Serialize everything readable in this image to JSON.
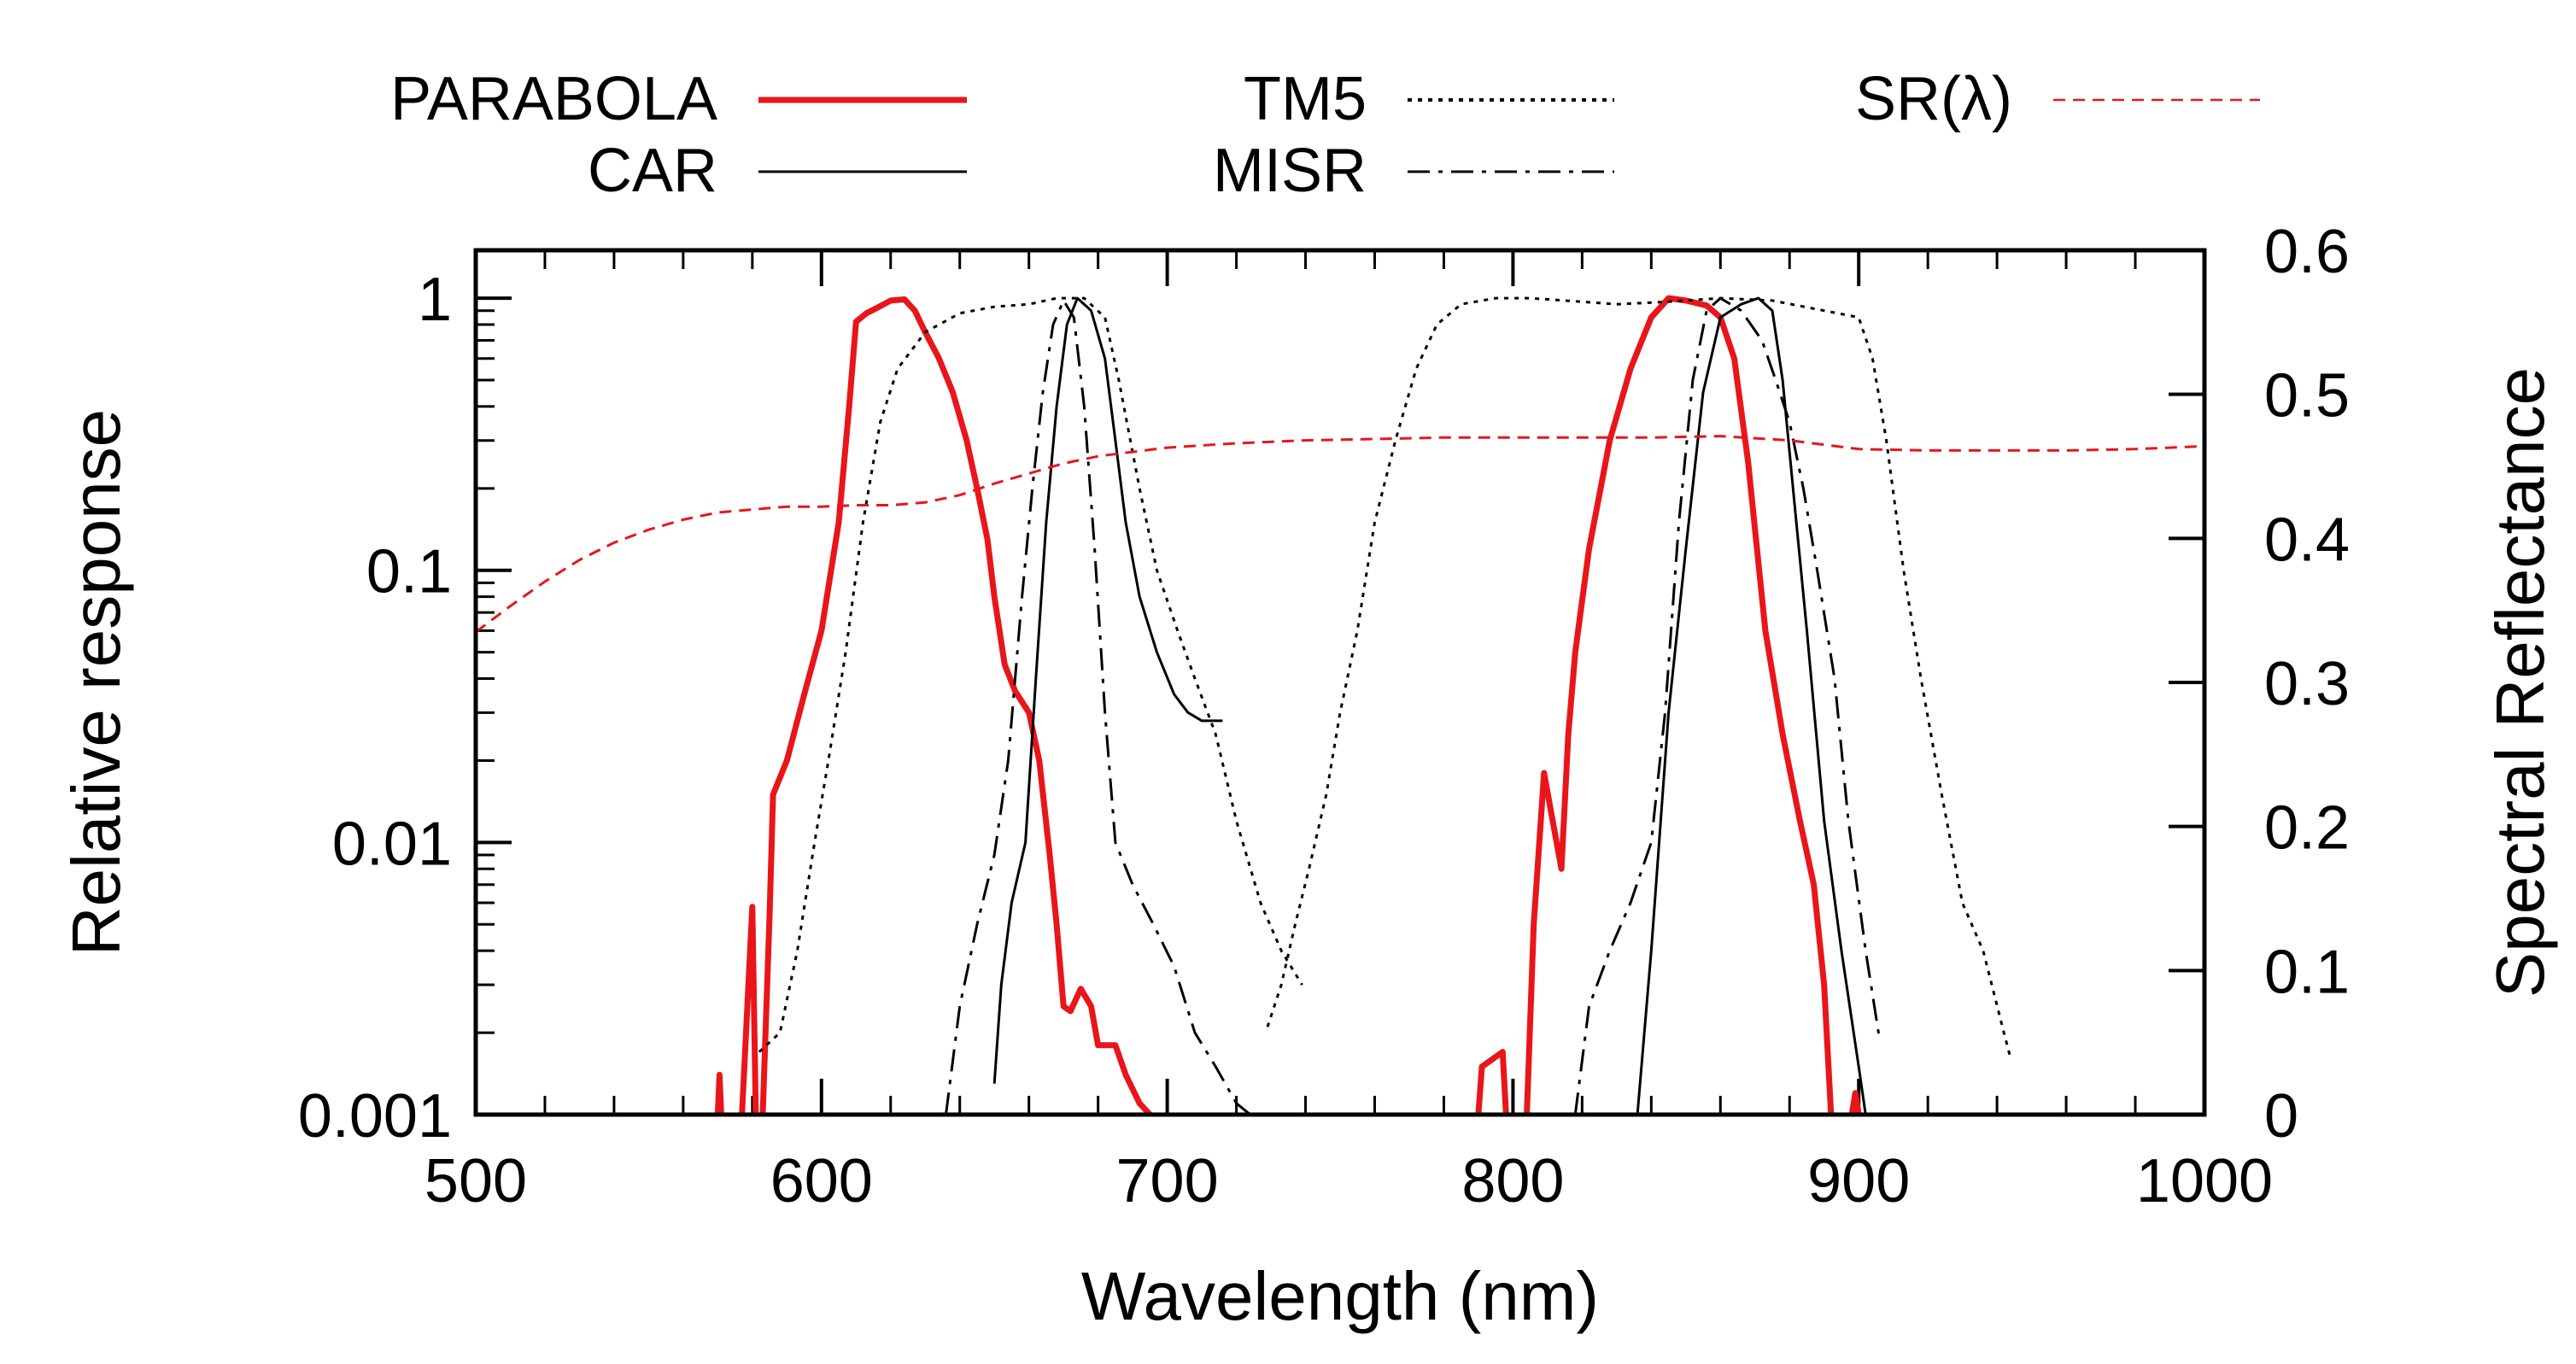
{
  "chart_data": {
    "type": "line",
    "xlabel": "Wavelength (nm)",
    "ylabel": "Relative response",
    "y2label": "Spectral Reflectance",
    "xlim": [
      500,
      1000
    ],
    "ylim": [
      0.001,
      1.5
    ],
    "yscale": "log",
    "y2lim": [
      0,
      0.6
    ],
    "legend_position": "top",
    "x_ticks": [
      500,
      600,
      700,
      800,
      900,
      1000
    ],
    "x_tick_labels": [
      "500",
      "600",
      "700",
      "800",
      "900",
      "1000"
    ],
    "y_ticks": [
      0.001,
      0.01,
      0.1,
      1
    ],
    "y_tick_labels": [
      "0.001",
      "0.01",
      "0.1",
      "1"
    ],
    "y2_ticks": [
      0,
      0.1,
      0.2,
      0.3,
      0.4,
      0.5,
      0.6
    ],
    "y2_tick_labels": [
      "0",
      "0.1",
      "0.2",
      "0.3",
      "0.4",
      "0.5",
      "0.6"
    ],
    "series": [
      {
        "name": "PARABOLA",
        "color": "#e8161b",
        "axis": "left",
        "dash": "solid",
        "width": "thick",
        "segments": [
          [
            [
              570,
              0.001
            ],
            [
              570.5,
              0.0014
            ],
            [
              571,
              0.001
            ]
          ],
          [
            [
              577,
              0.001
            ],
            [
              580,
              0.0058
            ],
            [
              581,
              0.001
            ]
          ],
          [
            [
              583,
              0.001
            ],
            [
              585,
              0.0055
            ],
            [
              586,
              0.015
            ],
            [
              590,
              0.02
            ],
            [
              595,
              0.035
            ],
            [
              600,
              0.06
            ],
            [
              605,
              0.15
            ],
            [
              608,
              0.4
            ],
            [
              610,
              0.82
            ],
            [
              613,
              0.88
            ],
            [
              616,
              0.92
            ],
            [
              620,
              0.98
            ],
            [
              624,
              0.99
            ],
            [
              627,
              0.9
            ],
            [
              630,
              0.75
            ],
            [
              634,
              0.6
            ],
            [
              638,
              0.45
            ],
            [
              642,
              0.3
            ],
            [
              645,
              0.2
            ],
            [
              648,
              0.13
            ],
            [
              650,
              0.08
            ],
            [
              653,
              0.045
            ],
            [
              656,
              0.036
            ],
            [
              660,
              0.03
            ],
            [
              663,
              0.02
            ],
            [
              666,
              0.009
            ],
            [
              668,
              0.005
            ],
            [
              670,
              0.0025
            ],
            [
              672,
              0.0024
            ],
            [
              675,
              0.0029
            ],
            [
              678,
              0.0025
            ],
            [
              680,
              0.0018
            ],
            [
              685,
              0.0018
            ],
            [
              688,
              0.0014
            ],
            [
              692,
              0.0011
            ],
            [
              695,
              0.001
            ]
          ],
          [
            [
              790,
              0.001
            ],
            [
              791,
              0.0015
            ],
            [
              797,
              0.0017
            ],
            [
              798,
              0.001
            ]
          ],
          [
            [
              804,
              0.001
            ],
            [
              806,
              0.005
            ],
            [
              809,
              0.018
            ],
            [
              811,
              0.013
            ],
            [
              814,
              0.008
            ],
            [
              816,
              0.025
            ],
            [
              818,
              0.05
            ],
            [
              822,
              0.12
            ],
            [
              828,
              0.3
            ],
            [
              834,
              0.55
            ],
            [
              840,
              0.85
            ],
            [
              845,
              1.0
            ],
            [
              850,
              0.98
            ],
            [
              856,
              0.94
            ],
            [
              860,
              0.85
            ],
            [
              864,
              0.6
            ],
            [
              868,
              0.25
            ],
            [
              873,
              0.06
            ],
            [
              878,
              0.025
            ],
            [
              883,
              0.012
            ],
            [
              887,
              0.007
            ],
            [
              890,
              0.003
            ],
            [
              892,
              0.001
            ]
          ],
          [
            [
              898,
              0.001
            ],
            [
              899,
              0.0012
            ],
            [
              900,
              0.001
            ]
          ]
        ]
      },
      {
        "name": "CAR",
        "color": "#000000",
        "axis": "left",
        "dash": "solid",
        "width": "thin",
        "segments": [
          [
            [
              650,
              0.0013
            ],
            [
              652,
              0.003
            ],
            [
              655,
              0.006
            ],
            [
              659,
              0.01
            ],
            [
              662,
              0.04
            ],
            [
              665,
              0.15
            ],
            [
              668,
              0.4
            ],
            [
              671,
              0.8
            ],
            [
              674,
              1.0
            ],
            [
              678,
              0.9
            ],
            [
              682,
              0.6
            ],
            [
              685,
              0.3
            ],
            [
              688,
              0.15
            ],
            [
              692,
              0.08
            ],
            [
              697,
              0.05
            ],
            [
              702,
              0.035
            ],
            [
              706,
              0.03
            ],
            [
              710,
              0.028
            ],
            [
              716,
              0.028
            ]
          ],
          [
            [
              836,
              0.001
            ],
            [
              840,
              0.004
            ],
            [
              845,
              0.03
            ],
            [
              850,
              0.12
            ],
            [
              855,
              0.45
            ],
            [
              860,
              0.85
            ],
            [
              866,
              0.95
            ],
            [
              871,
              1.0
            ],
            [
              875,
              0.9
            ],
            [
              878,
              0.5
            ],
            [
              881,
              0.2
            ],
            [
              885,
              0.06
            ],
            [
              890,
              0.012
            ],
            [
              895,
              0.004
            ],
            [
              900,
              0.0015
            ],
            [
              902,
              0.001
            ]
          ]
        ]
      },
      {
        "name": "TM5",
        "color": "#000000",
        "axis": "left",
        "dash": "dotted",
        "width": "thin",
        "segments": [
          [
            [
              582,
              0.0017
            ],
            [
              588,
              0.002
            ],
            [
              593,
              0.004
            ],
            [
              598,
              0.01
            ],
            [
              602,
              0.02
            ],
            [
              607,
              0.05
            ],
            [
              612,
              0.15
            ],
            [
              617,
              0.35
            ],
            [
              622,
              0.55
            ],
            [
              630,
              0.75
            ],
            [
              640,
              0.88
            ],
            [
              650,
              0.93
            ],
            [
              660,
              0.95
            ],
            [
              668,
              1.0
            ],
            [
              676,
              1.0
            ],
            [
              682,
              0.85
            ],
            [
              686,
              0.5
            ],
            [
              692,
              0.2
            ],
            [
              697,
              0.1
            ],
            [
              703,
              0.06
            ],
            [
              708,
              0.04
            ],
            [
              714,
              0.025
            ],
            [
              720,
              0.012
            ],
            [
              727,
              0.006
            ],
            [
              733,
              0.004
            ],
            [
              739,
              0.003
            ]
          ],
          [
            [
              729,
              0.0021
            ],
            [
              733,
              0.003
            ],
            [
              737,
              0.005
            ],
            [
              741,
              0.008
            ],
            [
              746,
              0.015
            ],
            [
              750,
              0.03
            ],
            [
              755,
              0.06
            ],
            [
              760,
              0.15
            ],
            [
              766,
              0.3
            ],
            [
              772,
              0.55
            ],
            [
              778,
              0.8
            ],
            [
              785,
              0.95
            ],
            [
              795,
              1.0
            ],
            [
              805,
              1.0
            ],
            [
              815,
              0.98
            ],
            [
              830,
              0.95
            ],
            [
              845,
              0.97
            ],
            [
              860,
              1.0
            ],
            [
              875,
              0.98
            ],
            [
              890,
              0.9
            ],
            [
              900,
              0.85
            ],
            [
              904,
              0.6
            ],
            [
              908,
              0.3
            ],
            [
              913,
              0.1
            ],
            [
              918,
              0.04
            ],
            [
              924,
              0.015
            ],
            [
              930,
              0.006
            ],
            [
              936,
              0.004
            ],
            [
              942,
              0.002
            ],
            [
              944,
              0.0016
            ]
          ]
        ]
      },
      {
        "name": "MISR",
        "color": "#000000",
        "axis": "left",
        "dash": "dashdot",
        "width": "thin",
        "segments": [
          [
            [
              636,
              0.001
            ],
            [
              640,
              0.0025
            ],
            [
              645,
              0.005
            ],
            [
              650,
              0.009
            ],
            [
              654,
              0.02
            ],
            [
              658,
              0.08
            ],
            [
              661,
              0.2
            ],
            [
              664,
              0.45
            ],
            [
              667,
              0.8
            ],
            [
              670,
              0.98
            ],
            [
              673,
              0.85
            ],
            [
              676,
              0.4
            ],
            [
              679,
              0.12
            ],
            [
              682,
              0.03
            ],
            [
              685,
              0.01
            ],
            [
              690,
              0.007
            ],
            [
              696,
              0.005
            ],
            [
              702,
              0.0035
            ],
            [
              708,
              0.002
            ],
            [
              714,
              0.0015
            ],
            [
              720,
              0.0011
            ],
            [
              724,
              0.001
            ]
          ],
          [
            [
              818,
              0.001
            ],
            [
              822,
              0.0025
            ],
            [
              828,
              0.004
            ],
            [
              834,
              0.006
            ],
            [
              840,
              0.01
            ],
            [
              844,
              0.03
            ],
            [
              848,
              0.15
            ],
            [
              852,
              0.5
            ],
            [
              856,
              0.9
            ],
            [
              860,
              1.0
            ],
            [
              866,
              0.9
            ],
            [
              872,
              0.7
            ],
            [
              876,
              0.5
            ],
            [
              880,
              0.35
            ],
            [
              884,
              0.2
            ],
            [
              888,
              0.1
            ],
            [
              893,
              0.04
            ],
            [
              897,
              0.012
            ],
            [
              902,
              0.004
            ],
            [
              906,
              0.0019
            ]
          ]
        ]
      },
      {
        "name": "SR(λ)",
        "color": "#e8161b",
        "axis": "right",
        "dash": "dashed",
        "width": "thin",
        "segments": [
          [
            [
              500,
              0.335
            ],
            [
              510,
              0.353
            ],
            [
              520,
              0.37
            ],
            [
              530,
              0.385
            ],
            [
              540,
              0.397
            ],
            [
              550,
              0.406
            ],
            [
              560,
              0.413
            ],
            [
              570,
              0.418
            ],
            [
              580,
              0.42
            ],
            [
              590,
              0.422
            ],
            [
              600,
              0.422
            ],
            [
              610,
              0.423
            ],
            [
              620,
              0.423
            ],
            [
              630,
              0.425
            ],
            [
              640,
              0.43
            ],
            [
              650,
              0.438
            ],
            [
              660,
              0.445
            ],
            [
              670,
              0.452
            ],
            [
              680,
              0.457
            ],
            [
              690,
              0.46
            ],
            [
              700,
              0.463
            ],
            [
              720,
              0.466
            ],
            [
              740,
              0.468
            ],
            [
              760,
              0.469
            ],
            [
              780,
              0.47
            ],
            [
              800,
              0.47
            ],
            [
              820,
              0.47
            ],
            [
              840,
              0.47
            ],
            [
              860,
              0.471
            ],
            [
              880,
              0.468
            ],
            [
              900,
              0.462
            ],
            [
              920,
              0.461
            ],
            [
              940,
              0.461
            ],
            [
              960,
              0.461
            ],
            [
              980,
              0.462
            ],
            [
              1000,
              0.464
            ]
          ]
        ]
      }
    ]
  }
}
